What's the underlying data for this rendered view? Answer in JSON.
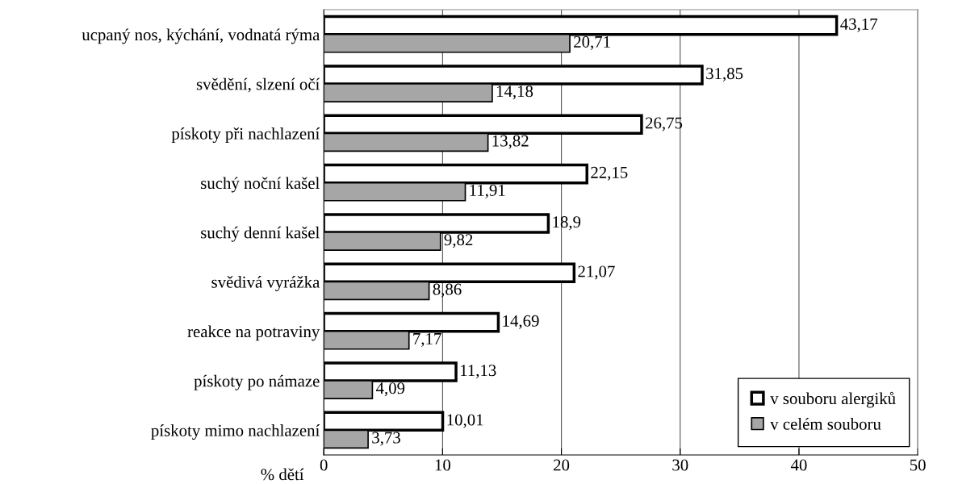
{
  "chart_data": {
    "type": "bar",
    "orientation": "horizontal",
    "xlabel": "% dětí",
    "categories": [
      "ucpaný nos, kýchání, vodnatá rýma",
      "svědění, slzení očí",
      "pískoty při nachlazení",
      "suchý noční kašel",
      "suchý denní kašel",
      "svědivá vyrážka",
      "reakce na potraviny",
      "pískoty po námaze",
      "pískoty mimo nachlazení"
    ],
    "series": [
      {
        "name": "v souboru alergiků",
        "color": "#ffffff",
        "values": [
          43.17,
          31.85,
          26.75,
          22.15,
          18.9,
          21.07,
          14.69,
          11.13,
          10.01
        ],
        "value_labels": [
          "43,17",
          "31,85",
          "26,75",
          "22,15",
          "18,9",
          "21,07",
          "14,69",
          "11,13",
          "10,01"
        ]
      },
      {
        "name": "v celém souboru",
        "color": "#a6a6a6",
        "values": [
          20.71,
          14.18,
          13.82,
          11.91,
          9.82,
          8.86,
          7.17,
          4.09,
          3.73
        ],
        "value_labels": [
          "20,71",
          "14,18",
          "13,82",
          "11,91",
          "9,82",
          "8,86",
          "7,17",
          "4,09",
          "3,73"
        ]
      }
    ],
    "xlim": [
      0,
      50
    ],
    "xticks": [
      0,
      10,
      20,
      30,
      40,
      50
    ],
    "grid": "x",
    "legend": "bottom right"
  }
}
